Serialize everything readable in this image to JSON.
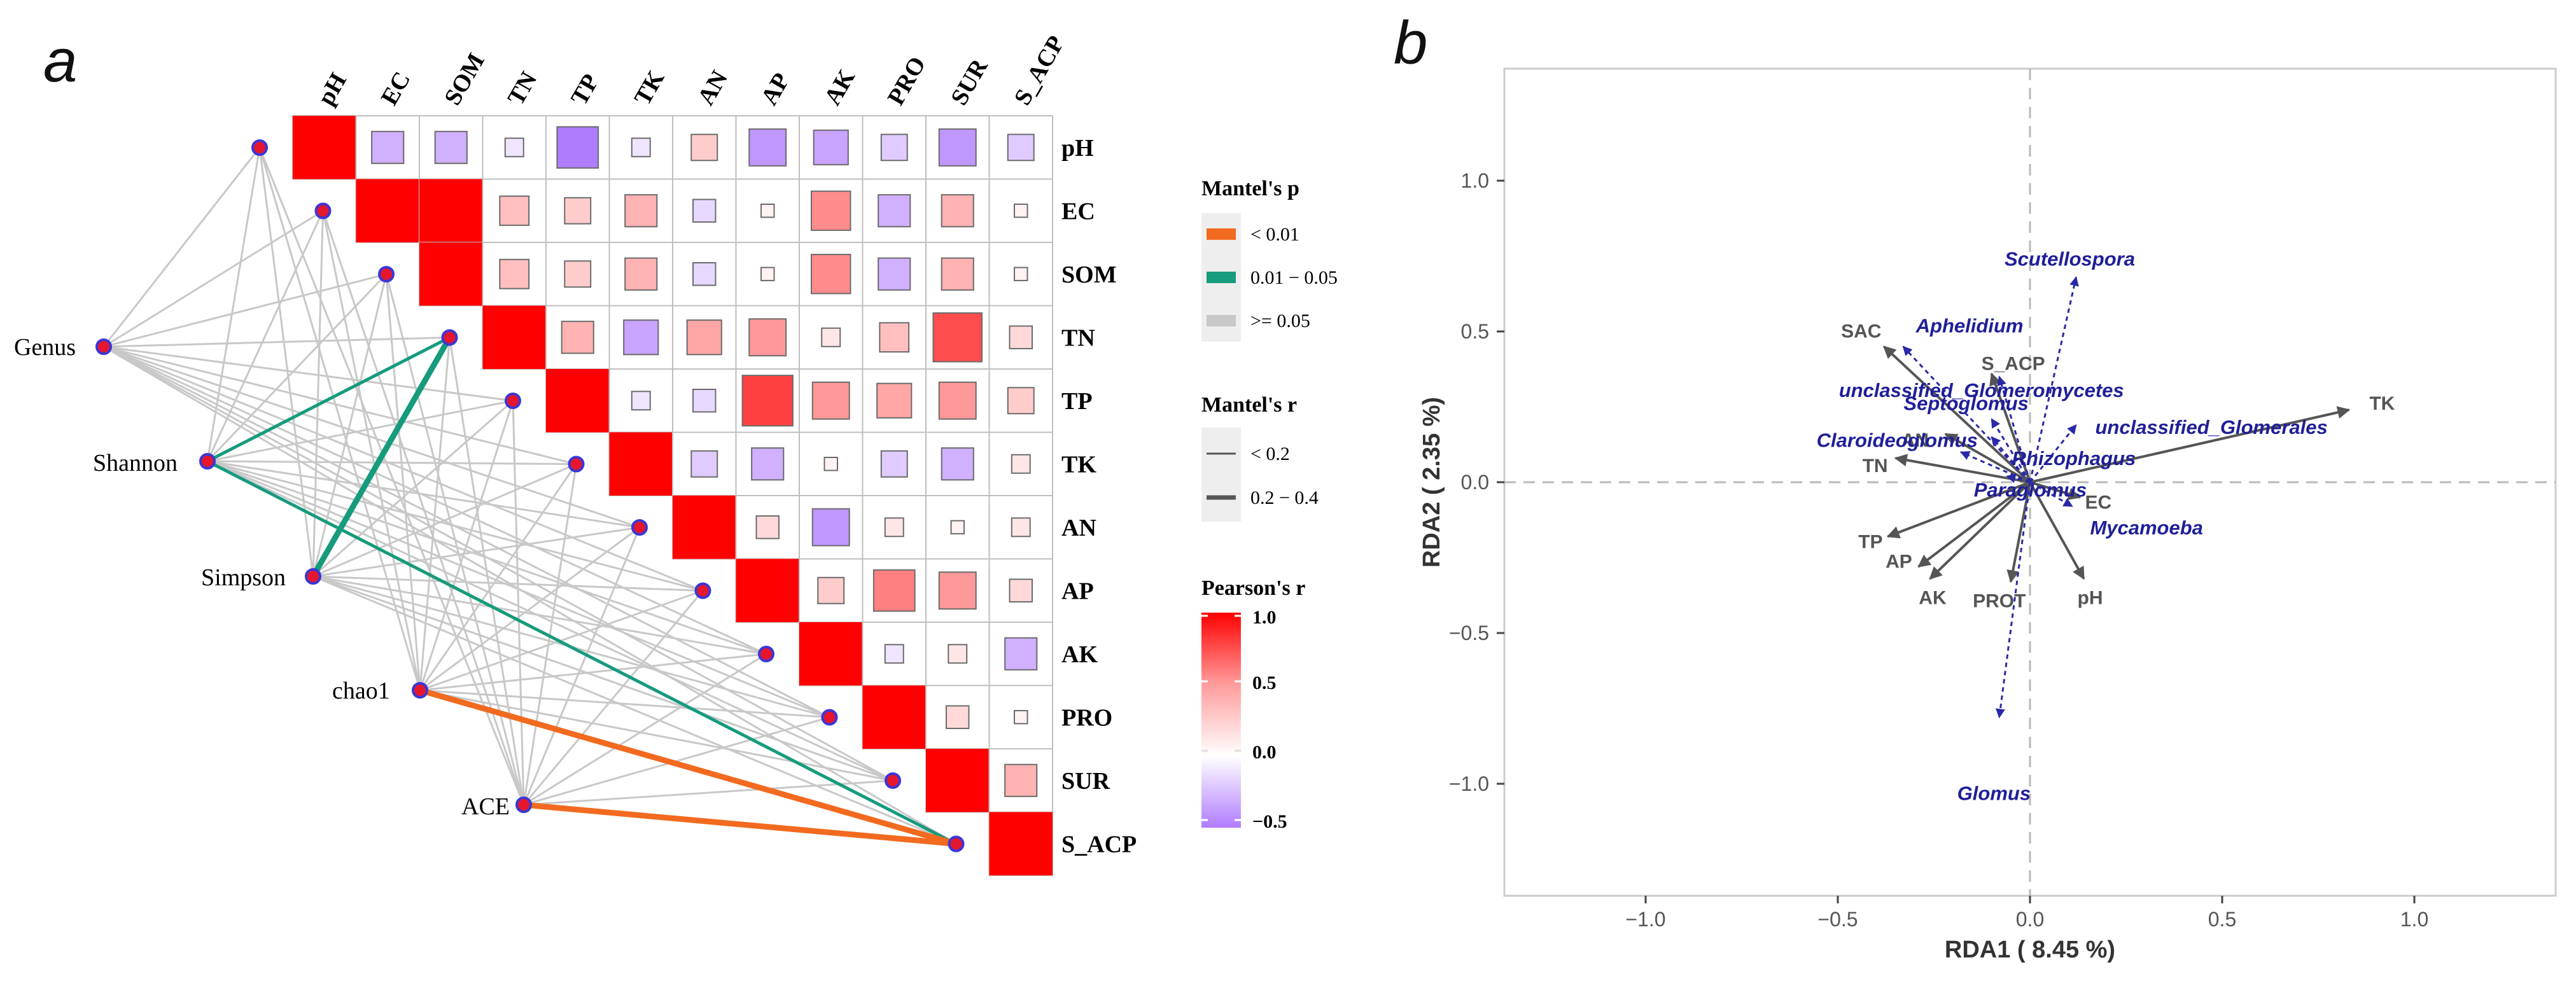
{
  "chart_data": [
    {
      "panel_label": "a",
      "type": "heatmap",
      "subtype": "mantel-test-correlogram",
      "variables": [
        "pH",
        "EC",
        "SOM",
        "TN",
        "TP",
        "TK",
        "AN",
        "AP",
        "AK",
        "PRO",
        "SUR",
        "S_ACP"
      ],
      "pearson_r": [
        {
          "row": "pH",
          "col": "EC",
          "r": -0.3
        },
        {
          "row": "pH",
          "col": "SOM",
          "r": -0.3
        },
        {
          "row": "pH",
          "col": "TN",
          "r": -0.1
        },
        {
          "row": "pH",
          "col": "TP",
          "r": -0.5
        },
        {
          "row": "pH",
          "col": "TK",
          "r": -0.1
        },
        {
          "row": "pH",
          "col": "AN",
          "r": 0.2
        },
        {
          "row": "pH",
          "col": "AP",
          "r": -0.4
        },
        {
          "row": "pH",
          "col": "AK",
          "r": -0.35
        },
        {
          "row": "pH",
          "col": "PRO",
          "r": -0.2
        },
        {
          "row": "pH",
          "col": "SUR",
          "r": -0.4
        },
        {
          "row": "pH",
          "col": "S_ACP",
          "r": -0.2
        },
        {
          "row": "EC",
          "col": "SOM",
          "r": 1.0
        },
        {
          "row": "EC",
          "col": "TN",
          "r": 0.25
        },
        {
          "row": "EC",
          "col": "TP",
          "r": 0.2
        },
        {
          "row": "EC",
          "col": "TK",
          "r": 0.3
        },
        {
          "row": "EC",
          "col": "AN",
          "r": -0.15
        },
        {
          "row": "EC",
          "col": "AP",
          "r": 0.05
        },
        {
          "row": "EC",
          "col": "AK",
          "r": 0.45
        },
        {
          "row": "EC",
          "col": "PRO",
          "r": -0.3
        },
        {
          "row": "EC",
          "col": "SUR",
          "r": 0.3
        },
        {
          "row": "EC",
          "col": "S_ACP",
          "r": 0.05
        },
        {
          "row": "SOM",
          "col": "TN",
          "r": 0.25
        },
        {
          "row": "SOM",
          "col": "TP",
          "r": 0.2
        },
        {
          "row": "SOM",
          "col": "TK",
          "r": 0.3
        },
        {
          "row": "SOM",
          "col": "AN",
          "r": -0.15
        },
        {
          "row": "SOM",
          "col": "AP",
          "r": 0.05
        },
        {
          "row": "SOM",
          "col": "AK",
          "r": 0.45
        },
        {
          "row": "SOM",
          "col": "PRO",
          "r": -0.3
        },
        {
          "row": "SOM",
          "col": "SUR",
          "r": 0.3
        },
        {
          "row": "SOM",
          "col": "S_ACP",
          "r": 0.05
        },
        {
          "row": "TN",
          "col": "TP",
          "r": 0.3
        },
        {
          "row": "TN",
          "col": "TK",
          "r": -0.35
        },
        {
          "row": "TN",
          "col": "AN",
          "r": 0.35
        },
        {
          "row": "TN",
          "col": "AP",
          "r": 0.4
        },
        {
          "row": "TN",
          "col": "AK",
          "r": 0.1
        },
        {
          "row": "TN",
          "col": "PRO",
          "r": 0.25
        },
        {
          "row": "TN",
          "col": "SUR",
          "r": 0.7
        },
        {
          "row": "TN",
          "col": "S_ACP",
          "r": 0.15
        },
        {
          "row": "TP",
          "col": "TK",
          "r": -0.1
        },
        {
          "row": "TP",
          "col": "AN",
          "r": -0.15
        },
        {
          "row": "TP",
          "col": "AP",
          "r": 0.75
        },
        {
          "row": "TP",
          "col": "AK",
          "r": 0.4
        },
        {
          "row": "TP",
          "col": "PRO",
          "r": 0.35
        },
        {
          "row": "TP",
          "col": "SUR",
          "r": 0.4
        },
        {
          "row": "TP",
          "col": "S_ACP",
          "r": 0.2
        },
        {
          "row": "TK",
          "col": "AN",
          "r": -0.2
        },
        {
          "row": "TK",
          "col": "AP",
          "r": -0.3
        },
        {
          "row": "TK",
          "col": "AK",
          "r": 0.05
        },
        {
          "row": "TK",
          "col": "PRO",
          "r": -0.2
        },
        {
          "row": "TK",
          "col": "SUR",
          "r": -0.3
        },
        {
          "row": "TK",
          "col": "S_ACP",
          "r": 0.1
        },
        {
          "row": "AN",
          "col": "AP",
          "r": 0.15
        },
        {
          "row": "AN",
          "col": "AK",
          "r": -0.4
        },
        {
          "row": "AN",
          "col": "PRO",
          "r": 0.1
        },
        {
          "row": "AN",
          "col": "SUR",
          "r": 0.05
        },
        {
          "row": "AN",
          "col": "S_ACP",
          "r": 0.1
        },
        {
          "row": "AP",
          "col": "AK",
          "r": 0.2
        },
        {
          "row": "AP",
          "col": "PRO",
          "r": 0.5
        },
        {
          "row": "AP",
          "col": "SUR",
          "r": 0.4
        },
        {
          "row": "AP",
          "col": "S_ACP",
          "r": 0.15
        },
        {
          "row": "AK",
          "col": "PRO",
          "r": -0.1
        },
        {
          "row": "AK",
          "col": "SUR",
          "r": 0.1
        },
        {
          "row": "AK",
          "col": "S_ACP",
          "r": -0.3
        },
        {
          "row": "PRO",
          "col": "SUR",
          "r": 0.15
        },
        {
          "row": "PRO",
          "col": "S_ACP",
          "r": 0.05
        },
        {
          "row": "SUR",
          "col": "S_ACP",
          "r": 0.3
        }
      ],
      "mantel_nodes": [
        "Genus",
        "Shannon",
        "Simpson",
        "chao1",
        "ACE"
      ],
      "mantel_links": [
        {
          "from": "Shannon",
          "to": "TN",
          "p_class": "0.01 - 0.05",
          "r_class": "< 0.2"
        },
        {
          "from": "Shannon",
          "to": "S_ACP",
          "p_class": "0.01 - 0.05",
          "r_class": "< 0.2"
        },
        {
          "from": "Simpson",
          "to": "TN",
          "p_class": "0.01 - 0.05",
          "r_class": "0.2 - 0.4"
        },
        {
          "from": "chao1",
          "to": "S_ACP",
          "p_class": "< 0.01",
          "r_class": "0.2 - 0.4"
        },
        {
          "from": "ACE",
          "to": "S_ACP",
          "p_class": "< 0.01",
          "r_class": "0.2 - 0.4"
        }
      ],
      "legend": {
        "mantel_p": {
          "title": "Mantel's p",
          "entries": [
            "< 0.01",
            "0.01 − 0.05",
            ">= 0.05"
          ],
          "colors": [
            "#f26a1f",
            "#169b7c",
            "#c8c8c8"
          ]
        },
        "mantel_r": {
          "title": "Mantel's r",
          "entries": [
            "< 0.2",
            "0.2 − 0.4"
          ]
        },
        "pearson_r": {
          "title": "Pearson's r",
          "ticks": [
            "1.0",
            "0.5",
            "0.0",
            "−0.5"
          ],
          "range": [
            -0.5,
            1.0
          ],
          "colors": {
            "high": "#ff0000",
            "mid": "#ffffff",
            "low": "#b07cff"
          }
        }
      },
      "colors": {
        "node_fill": "#e6162e",
        "node_stroke": "#3a37d6",
        "grey_link": "#c8c8c8"
      }
    },
    {
      "panel_label": "b",
      "type": "scatter",
      "subtype": "rda-biplot",
      "xlabel": "RDA1 ( 8.45 %)",
      "ylabel": "RDA2 ( 2.35 %)",
      "xlim": [
        -1.4,
        1.4
      ],
      "ylim": [
        -1.4,
        1.4
      ],
      "xticks": [
        -1.0,
        -0.5,
        0.0,
        0.5,
        1.0
      ],
      "yticks": [
        -1.0,
        -0.5,
        0.0,
        0.5,
        1.0
      ],
      "xtick_labels": [
        "−1.0",
        "−0.5",
        "0.0",
        "0.5",
        "1.0"
      ],
      "ytick_labels": [
        "−1.0",
        "−0.5",
        "0.0",
        "0.5",
        "1.0"
      ],
      "env_vectors": [
        {
          "name": "TK",
          "x": 0.83,
          "y": 0.24
        },
        {
          "name": "SAC",
          "x": -0.38,
          "y": 0.45
        },
        {
          "name": "S_ACP",
          "x": -0.1,
          "y": 0.36
        },
        {
          "name": "AN",
          "x": -0.22,
          "y": 0.16
        },
        {
          "name": "TN",
          "x": -0.35,
          "y": 0.08
        },
        {
          "name": "EC",
          "x": 0.13,
          "y": -0.05
        },
        {
          "name": "TP",
          "x": -0.37,
          "y": -0.18
        },
        {
          "name": "AP",
          "x": -0.29,
          "y": -0.28
        },
        {
          "name": "AK",
          "x": -0.26,
          "y": -0.32
        },
        {
          "name": "PROT",
          "x": -0.05,
          "y": -0.33
        },
        {
          "name": "pH",
          "x": 0.14,
          "y": -0.32
        }
      ],
      "species_vectors": [
        {
          "name": "Scutellospora",
          "x": 0.12,
          "y": 0.68
        },
        {
          "name": "Aphelidium",
          "x": -0.33,
          "y": 0.45
        },
        {
          "name": "unclassified_Glomeromycetes",
          "x": -0.08,
          "y": 0.35
        },
        {
          "name": "unclassified_Glomerales",
          "x": 0.12,
          "y": 0.19
        },
        {
          "name": "Septoglomus",
          "x": -0.1,
          "y": 0.21
        },
        {
          "name": "Claroideoglomus",
          "x": -0.18,
          "y": 0.1
        },
        {
          "name": "Rhizophagus",
          "x": -0.1,
          "y": 0.15
        },
        {
          "name": "Paraglomus",
          "x": -0.06,
          "y": 0.02
        },
        {
          "name": "Mycamoeba",
          "x": 0.11,
          "y": -0.08
        },
        {
          "name": "Glomus",
          "x": -0.08,
          "y": -0.78
        }
      ],
      "colors": {
        "env_arrow": "#555555",
        "species_arrow": "#2929a8",
        "species_label": "#1f1f99"
      }
    }
  ]
}
